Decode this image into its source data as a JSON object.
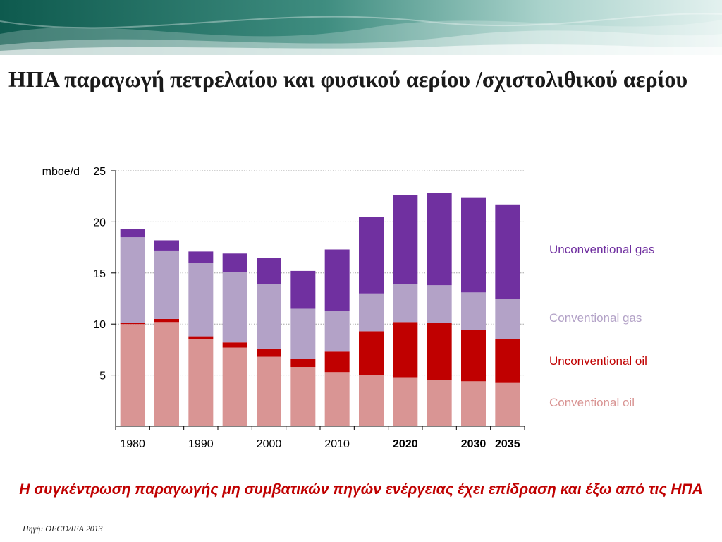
{
  "slide": {
    "title": "ΗΠΑ παραγωγή πετρελαίου και φυσικού αερίου /σχιστολιθικού αερίου",
    "note": "Η συγκέντρωση παραγωγής μη συμβατικών πηγών ενέργειας έχει επίδραση και έξω από τις ΗΠΑ",
    "source": "Πηγή: OECD/IEA 2013"
  },
  "chart_data": {
    "type": "bar",
    "stacked": true,
    "ylabel": "mboe/d",
    "ylim": [
      0,
      25
    ],
    "yticks": [
      5,
      10,
      15,
      20,
      25
    ],
    "grid": true,
    "legend_position": "right",
    "categories": [
      "1980",
      "1985",
      "1990",
      "1995",
      "2000",
      "2005",
      "2010",
      "2015",
      "2020",
      "2025",
      "2030",
      "2035"
    ],
    "x_tick_labels": [
      {
        "category": "1980",
        "label": "1980",
        "bold": false
      },
      {
        "category": "1990",
        "label": "1990",
        "bold": false
      },
      {
        "category": "2000",
        "label": "2000",
        "bold": false
      },
      {
        "category": "2010",
        "label": "2010",
        "bold": false
      },
      {
        "category": "2020",
        "label": "2020",
        "bold": true
      },
      {
        "category": "2030",
        "label": "2030",
        "bold": true
      },
      {
        "category": "2035",
        "label": "2035",
        "bold": true
      }
    ],
    "series": [
      {
        "name": "Conventional oil",
        "color": "#d99594",
        "values": [
          10.0,
          10.2,
          8.5,
          7.7,
          6.8,
          5.8,
          5.3,
          5.0,
          4.8,
          4.5,
          4.4,
          4.3
        ]
      },
      {
        "name": "Unconventional oil",
        "color": "#c00000",
        "values": [
          0.1,
          0.3,
          0.3,
          0.5,
          0.8,
          0.8,
          2.0,
          4.3,
          5.4,
          5.6,
          5.0,
          4.2
        ]
      },
      {
        "name": "Conventional gas",
        "color": "#b3a2c7",
        "values": [
          8.4,
          6.7,
          7.2,
          6.9,
          6.3,
          4.9,
          4.0,
          3.7,
          3.7,
          3.7,
          3.7,
          4.0
        ]
      },
      {
        "name": "Unconventional gas",
        "color": "#7030a0",
        "values": [
          0.8,
          1.0,
          1.1,
          1.8,
          2.6,
          3.7,
          6.0,
          7.5,
          8.7,
          9.0,
          9.3,
          9.2
        ]
      }
    ]
  }
}
